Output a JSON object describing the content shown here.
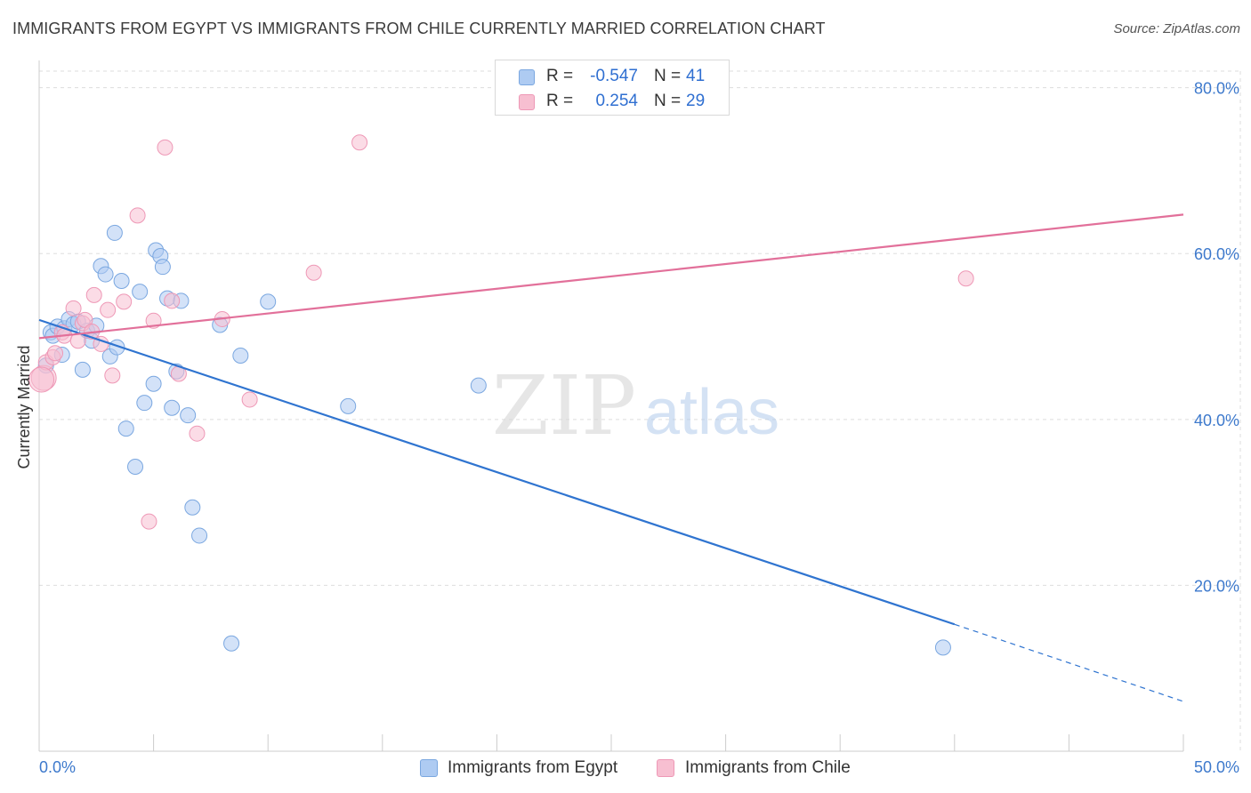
{
  "title": "IMMIGRANTS FROM EGYPT VS IMMIGRANTS FROM CHILE CURRENTLY MARRIED CORRELATION CHART",
  "source": "Source: ZipAtlas.com",
  "watermark": {
    "zip": "ZIP",
    "atlas": "atlas"
  },
  "legend": {
    "egypt": {
      "r_label": "R =",
      "r_value": "-0.547",
      "n_label": "N =",
      "n_value": "41"
    },
    "chile": {
      "r_label": "R =",
      "r_value": "0.254",
      "n_label": "N =",
      "n_value": "29"
    }
  },
  "bottom_legend": {
    "egypt": "Immigrants from Egypt",
    "chile": "Immigrants from Chile"
  },
  "colors": {
    "egypt_fill": "#aecbf2",
    "egypt_stroke": "#7aa7e0",
    "egypt_line": "#2f74d0",
    "chile_fill": "#f7bfd1",
    "chile_stroke": "#ee98b6",
    "chile_line": "#e2709a",
    "tick_label": "#3d79cc",
    "grid": "#dddddd"
  },
  "chart_data": {
    "type": "scatter",
    "title": "IMMIGRANTS FROM EGYPT VS IMMIGRANTS FROM CHILE CURRENTLY MARRIED CORRELATION CHART",
    "xlabel": "",
    "ylabel": "Currently Married",
    "xlim": [
      0,
      50
    ],
    "ylim": [
      0,
      82
    ],
    "x_tick_labels": [
      {
        "value": 0,
        "label": "0.0%"
      },
      {
        "value": 50,
        "label": "50.0%"
      }
    ],
    "y_tick_labels": [
      {
        "value": 20,
        "label": "20.0%"
      },
      {
        "value": 40,
        "label": "40.0%"
      },
      {
        "value": 60,
        "label": "60.0%"
      },
      {
        "value": 80,
        "label": "80.0%"
      }
    ],
    "series": [
      {
        "name": "Immigrants from Egypt",
        "key": "egypt",
        "points": [
          {
            "x": 0.3,
            "y": 46.5
          },
          {
            "x": 0.5,
            "y": 50.5
          },
          {
            "x": 0.6,
            "y": 50.1
          },
          {
            "x": 0.8,
            "y": 51.2
          },
          {
            "x": 1.0,
            "y": 47.8
          },
          {
            "x": 1.1,
            "y": 51.0
          },
          {
            "x": 1.3,
            "y": 52.1
          },
          {
            "x": 1.5,
            "y": 51.5
          },
          {
            "x": 1.7,
            "y": 51.8
          },
          {
            "x": 1.9,
            "y": 46.0
          },
          {
            "x": 2.1,
            "y": 50.7
          },
          {
            "x": 2.3,
            "y": 49.5
          },
          {
            "x": 2.5,
            "y": 51.3
          },
          {
            "x": 2.7,
            "y": 58.5
          },
          {
            "x": 2.9,
            "y": 57.5
          },
          {
            "x": 3.1,
            "y": 47.6
          },
          {
            "x": 3.3,
            "y": 62.5
          },
          {
            "x": 3.4,
            "y": 48.7
          },
          {
            "x": 3.6,
            "y": 56.7
          },
          {
            "x": 3.8,
            "y": 38.9
          },
          {
            "x": 4.2,
            "y": 34.3
          },
          {
            "x": 4.4,
            "y": 55.4
          },
          {
            "x": 4.6,
            "y": 42.0
          },
          {
            "x": 5.0,
            "y": 44.3
          },
          {
            "x": 5.1,
            "y": 60.4
          },
          {
            "x": 5.3,
            "y": 59.7
          },
          {
            "x": 5.4,
            "y": 58.4
          },
          {
            "x": 5.6,
            "y": 54.6
          },
          {
            "x": 5.8,
            "y": 41.4
          },
          {
            "x": 6.0,
            "y": 45.8
          },
          {
            "x": 6.2,
            "y": 54.3
          },
          {
            "x": 6.5,
            "y": 40.5
          },
          {
            "x": 6.7,
            "y": 29.4
          },
          {
            "x": 7.0,
            "y": 26.0
          },
          {
            "x": 7.9,
            "y": 51.4
          },
          {
            "x": 8.4,
            "y": 13.0
          },
          {
            "x": 8.8,
            "y": 47.7
          },
          {
            "x": 10.0,
            "y": 54.2
          },
          {
            "x": 13.5,
            "y": 41.6
          },
          {
            "x": 19.2,
            "y": 44.1
          },
          {
            "x": 39.5,
            "y": 12.5
          }
        ],
        "trend": {
          "x1": 0,
          "y1": 52.0,
          "x2": 40.0,
          "y2": 15.3,
          "dash_x2": 50,
          "dash_y2": 6.0
        }
      },
      {
        "name": "Immigrants from Chile",
        "key": "chile",
        "points": [
          {
            "x": 0.2,
            "y": 45.0
          },
          {
            "x": 0.3,
            "y": 46.9
          },
          {
            "x": 0.6,
            "y": 47.5
          },
          {
            "x": 0.7,
            "y": 48.0
          },
          {
            "x": 1.0,
            "y": 50.5
          },
          {
            "x": 1.1,
            "y": 50.1
          },
          {
            "x": 1.5,
            "y": 53.4
          },
          {
            "x": 1.7,
            "y": 49.5
          },
          {
            "x": 1.9,
            "y": 51.6
          },
          {
            "x": 2.0,
            "y": 52.0
          },
          {
            "x": 2.3,
            "y": 50.6
          },
          {
            "x": 2.4,
            "y": 55.0
          },
          {
            "x": 2.7,
            "y": 49.1
          },
          {
            "x": 3.0,
            "y": 53.2
          },
          {
            "x": 3.2,
            "y": 45.3
          },
          {
            "x": 3.7,
            "y": 54.2
          },
          {
            "x": 4.3,
            "y": 64.6
          },
          {
            "x": 4.8,
            "y": 27.7
          },
          {
            "x": 5.0,
            "y": 51.9
          },
          {
            "x": 5.5,
            "y": 72.8
          },
          {
            "x": 5.8,
            "y": 54.3
          },
          {
            "x": 6.1,
            "y": 45.5
          },
          {
            "x": 6.9,
            "y": 38.3
          },
          {
            "x": 8.0,
            "y": 52.1
          },
          {
            "x": 9.2,
            "y": 42.4
          },
          {
            "x": 12.0,
            "y": 57.7
          },
          {
            "x": 14.0,
            "y": 73.4
          },
          {
            "x": 40.5,
            "y": 57.0
          },
          {
            "x": 0.1,
            "y": 44.8
          }
        ],
        "trend": {
          "x1": 0,
          "y1": 49.8,
          "x2": 50,
          "y2": 64.7
        }
      }
    ]
  }
}
